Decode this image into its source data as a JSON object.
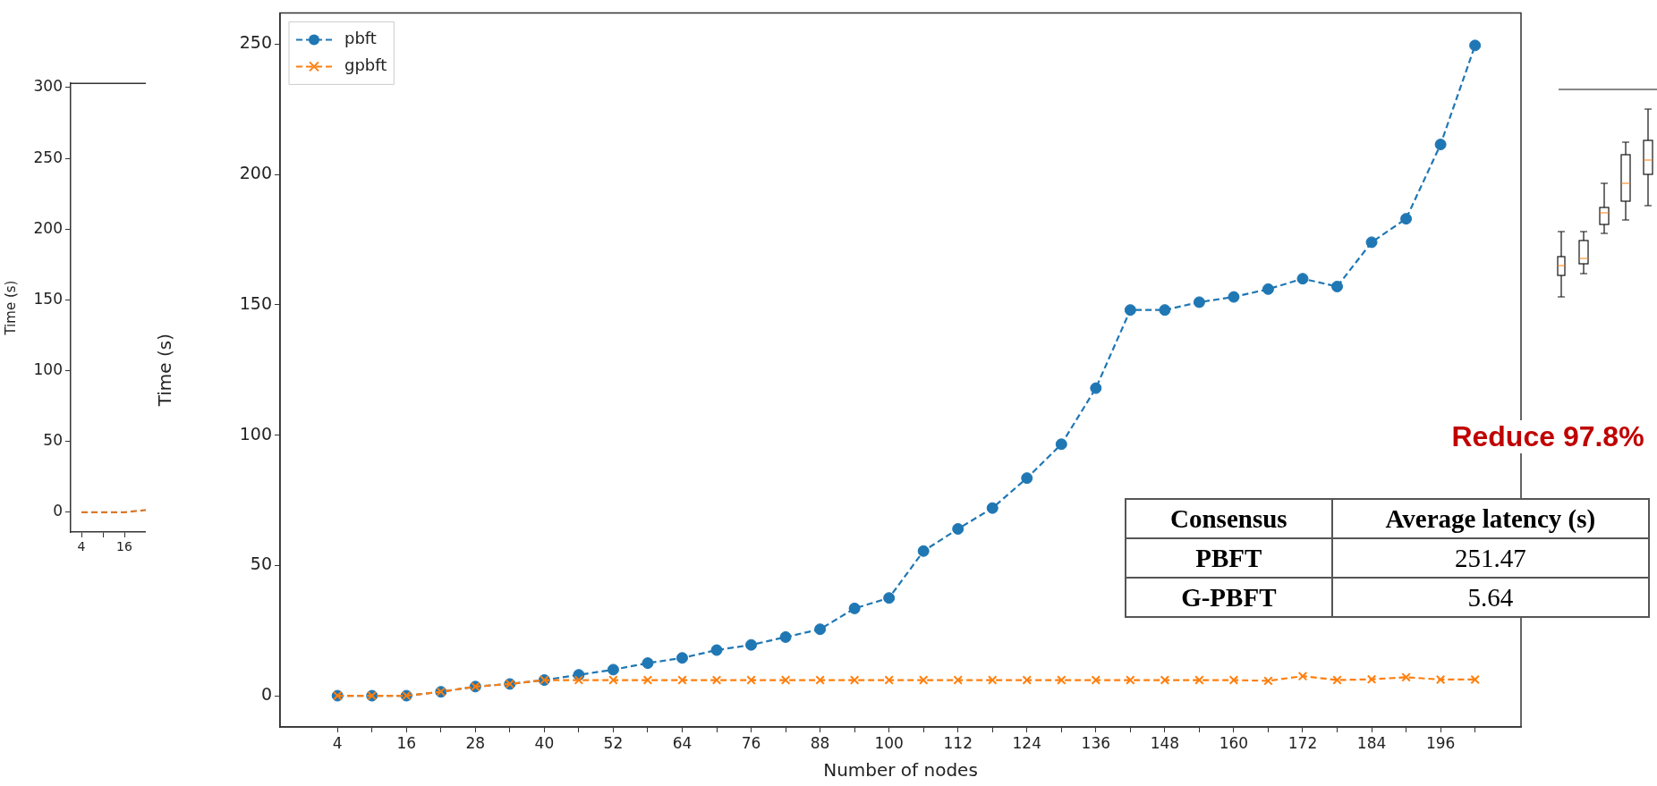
{
  "chart_data": [
    {
      "type": "line",
      "ylabel": "Time (s)",
      "xlim": [
        1,
        22
      ],
      "ylim": [
        -14,
        303
      ],
      "xticks": [
        4,
        {
          "value": 10,
          "label": null
        },
        16
      ],
      "yticks": [
        0,
        50,
        100,
        150,
        200,
        250,
        300
      ],
      "grid": false,
      "legend": false,
      "marker": "none",
      "line_style": "dashed",
      "series": [
        {
          "color": "#d9782b",
          "x": [
            4,
            10,
            16,
            22
          ],
          "values": [
            0,
            0,
            0,
            1.5
          ]
        }
      ]
    },
    {
      "type": "line",
      "xlabel": "Number of nodes",
      "ylabel": "Time (s)",
      "xlim": [
        -6,
        210
      ],
      "ylim": [
        -12,
        262
      ],
      "xticks": [
        4,
        {
          "value": 10,
          "label": null
        },
        16,
        {
          "value": 22,
          "label": null
        },
        28,
        {
          "value": 34,
          "label": null
        },
        40,
        {
          "value": 46,
          "label": null
        },
        52,
        {
          "value": 58,
          "label": null
        },
        64,
        {
          "value": 70,
          "label": null
        },
        76,
        {
          "value": 82,
          "label": null
        },
        88,
        {
          "value": 94,
          "label": null
        },
        100,
        {
          "value": 106,
          "label": null
        },
        112,
        {
          "value": 118,
          "label": null
        },
        124,
        {
          "value": 130,
          "label": null
        },
        136,
        {
          "value": 142,
          "label": null
        },
        148,
        {
          "value": 154,
          "label": null
        },
        160,
        {
          "value": 166,
          "label": null
        },
        172,
        {
          "value": 178,
          "label": null
        },
        184,
        {
          "value": 190,
          "label": null
        },
        196,
        {
          "value": 202,
          "label": null
        }
      ],
      "yticks": [
        0,
        50,
        100,
        150,
        200,
        250
      ],
      "grid": false,
      "legend": "top left",
      "line_style": "dashed",
      "x": [
        4,
        10,
        16,
        22,
        28,
        34,
        40,
        46,
        52,
        58,
        64,
        70,
        76,
        82,
        88,
        94,
        100,
        106,
        112,
        118,
        124,
        130,
        136,
        142,
        148,
        154,
        160,
        166,
        172,
        178,
        184,
        190,
        196,
        202
      ],
      "series": [
        {
          "name": "pbft",
          "color": "#1f77b4",
          "marker": "circle",
          "values": [
            0,
            0,
            0,
            1.5,
            3.5,
            4.5,
            6,
            8,
            10,
            12.5,
            14.5,
            17.5,
            19.5,
            22.5,
            25.5,
            33.5,
            37.5,
            55.5,
            64,
            72,
            83.5,
            96.5,
            118,
            148,
            148,
            151,
            153,
            156,
            160,
            157,
            174,
            183,
            211.5,
            249.5
          ]
        },
        {
          "name": "gpbft",
          "color": "#ff7f0e",
          "marker": "cross",
          "values": [
            0,
            0,
            0,
            1.5,
            3.5,
            4.5,
            6,
            6,
            6,
            6,
            6,
            6,
            6,
            6,
            6,
            6,
            6,
            6,
            6,
            6,
            6,
            6,
            6,
            6,
            6,
            6,
            6,
            5.7,
            7.5,
            6,
            6.3,
            7.1,
            6.2,
            6.2
          ]
        }
      ],
      "annotations": [
        "Reduce 97.8%",
        "Consensus",
        "Average latency (s)",
        "PBFT",
        "251.47",
        "G-PBFT",
        "5.64"
      ]
    }
  ]
}
